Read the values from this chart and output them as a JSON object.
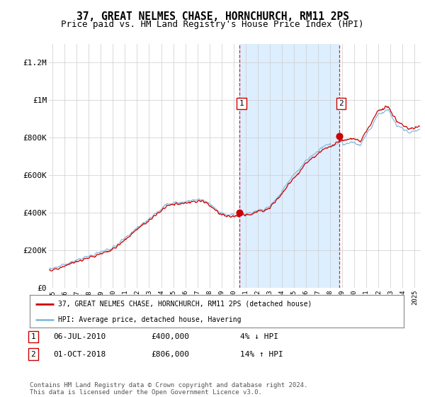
{
  "title": "37, GREAT NELMES CHASE, HORNCHURCH, RM11 2PS",
  "subtitle": "Price paid vs. HM Land Registry's House Price Index (HPI)",
  "title_fontsize": 10.5,
  "subtitle_fontsize": 9,
  "ylabel_ticks": [
    "£0",
    "£200K",
    "£400K",
    "£600K",
    "£800K",
    "£1M",
    "£1.2M"
  ],
  "ytick_values": [
    0,
    200000,
    400000,
    600000,
    800000,
    1000000,
    1200000
  ],
  "ylim": [
    0,
    1300000
  ],
  "xlim_start": 1994.7,
  "xlim_end": 2025.5,
  "background_color": "#ffffff",
  "plot_bg_color": "#ffffff",
  "shade_color": "#ddeeff",
  "line1_color": "#cc0000",
  "line2_color": "#88bbdd",
  "sale1_x": 2010.5,
  "sale1_y": 400000,
  "sale1_label": "1",
  "sale2_x": 2018.75,
  "sale2_y": 806000,
  "sale2_label": "2",
  "vline1_x": 2010.5,
  "vline2_x": 2018.75,
  "legend1_text": "37, GREAT NELMES CHASE, HORNCHURCH, RM11 2PS (detached house)",
  "legend2_text": "HPI: Average price, detached house, Havering",
  "note1_label": "1",
  "note1_date": "06-JUL-2010",
  "note1_price": "£400,000",
  "note1_change": "4% ↓ HPI",
  "note2_label": "2",
  "note2_date": "01-OCT-2018",
  "note2_price": "£806,000",
  "note2_change": "14% ↑ HPI",
  "footer": "Contains HM Land Registry data © Crown copyright and database right 2024.\nThis data is licensed under the Open Government Licence v3.0.",
  "xtick_years": [
    1995,
    1996,
    1997,
    1998,
    1999,
    2000,
    2001,
    2002,
    2003,
    2004,
    2005,
    2006,
    2007,
    2008,
    2009,
    2010,
    2011,
    2012,
    2013,
    2014,
    2015,
    2016,
    2017,
    2018,
    2019,
    2020,
    2021,
    2022,
    2023,
    2024,
    2025
  ]
}
